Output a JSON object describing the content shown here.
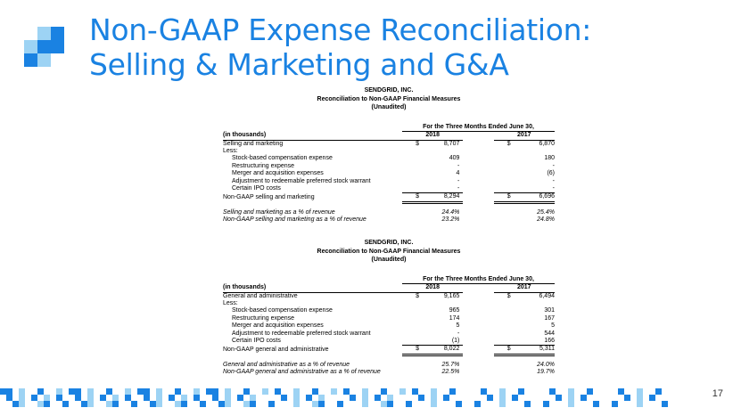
{
  "slide": {
    "title_line1": "Non-GAAP Expense Reconciliation:",
    "title_line2": "Selling & Marketing and G&A",
    "page_number": "17",
    "colors": {
      "title": "#1a82e2",
      "accent_dark": "#1a82e2",
      "accent_light": "#9dd3f4"
    }
  },
  "tables": [
    {
      "company": "SENDGRID, INC.",
      "subtitle": "Reconciliation to Non-GAAP Financial Measures",
      "note": "(Unaudited)",
      "period": "For the Three Months Ended June 30,",
      "unit_label": "(in thousands)",
      "year1": "2018",
      "year2": "2017",
      "rows": [
        {
          "label": "Selling and marketing",
          "d1": "$",
          "v1": "8,707",
          "d2": "$",
          "v2": "6,870"
        },
        {
          "label": "Less:",
          "d1": "",
          "v1": "",
          "d2": "",
          "v2": ""
        },
        {
          "label": "Stock-based compensation expense",
          "d1": "",
          "v1": "409",
          "d2": "",
          "v2": "180"
        },
        {
          "label": "Restructuring expense",
          "d1": "",
          "v1": "-",
          "d2": "",
          "v2": "-"
        },
        {
          "label": "Merger and acquisition expenses",
          "d1": "",
          "v1": "4",
          "d2": "",
          "v2": "(6)"
        },
        {
          "label": "Adjustment to redeemable preferred stock warrant",
          "d1": "",
          "v1": "-",
          "d2": "",
          "v2": "-"
        },
        {
          "label": "Certain IPO costs",
          "d1": "",
          "v1": "-",
          "d2": "",
          "v2": "-"
        },
        {
          "label": "Non-GAAP selling and marketing",
          "d1": "$",
          "v1": "8,294",
          "d2": "$",
          "v2": "6,696"
        },
        {
          "label": "Selling and marketing as a % of revenue",
          "d1": "",
          "v1": "24.4%",
          "d2": "",
          "v2": "25.4%"
        },
        {
          "label": "Non-GAAP selling and marketing as a % of revenue",
          "d1": "",
          "v1": "23.2%",
          "d2": "",
          "v2": "24.8%"
        }
      ]
    },
    {
      "company": "SENDGRID, INC.",
      "subtitle": "Reconciliation to Non-GAAP Financial Measures",
      "note": "(Unaudited)",
      "period": "For the Three Months Ended June 30,",
      "unit_label": "(in thousands)",
      "year1": "2018",
      "year2": "2017",
      "rows": [
        {
          "label": "General and administrative",
          "d1": "$",
          "v1": "9,165",
          "d2": "$",
          "v2": "6,494"
        },
        {
          "label": "Less:",
          "d1": "",
          "v1": "",
          "d2": "",
          "v2": ""
        },
        {
          "label": "Stock-based compensation expense",
          "d1": "",
          "v1": "965",
          "d2": "",
          "v2": "301"
        },
        {
          "label": "Restructuring expense",
          "d1": "",
          "v1": "174",
          "d2": "",
          "v2": "167"
        },
        {
          "label": "Merger and acquisition expenses",
          "d1": "",
          "v1": "5",
          "d2": "",
          "v2": "5"
        },
        {
          "label": "Adjustment to redeemable preferred stock warrant",
          "d1": "",
          "v1": "-",
          "d2": "",
          "v2": "544"
        },
        {
          "label": "Certain IPO costs",
          "d1": "",
          "v1": "(1)",
          "d2": "",
          "v2": "166"
        },
        {
          "label": "Non-GAAP general and administrative",
          "d1": "$",
          "v1": "8,022",
          "d2": "$",
          "v2": "5,311"
        },
        {
          "label": "General and administrative as a % of revenue",
          "d1": "",
          "v1": "25.7%",
          "d2": "",
          "v2": "24.0%"
        },
        {
          "label": "Non-GAAP general and administrative as a % of revenue",
          "d1": "",
          "v1": "22.5%",
          "d2": "",
          "v2": "19.7%"
        }
      ]
    }
  ]
}
